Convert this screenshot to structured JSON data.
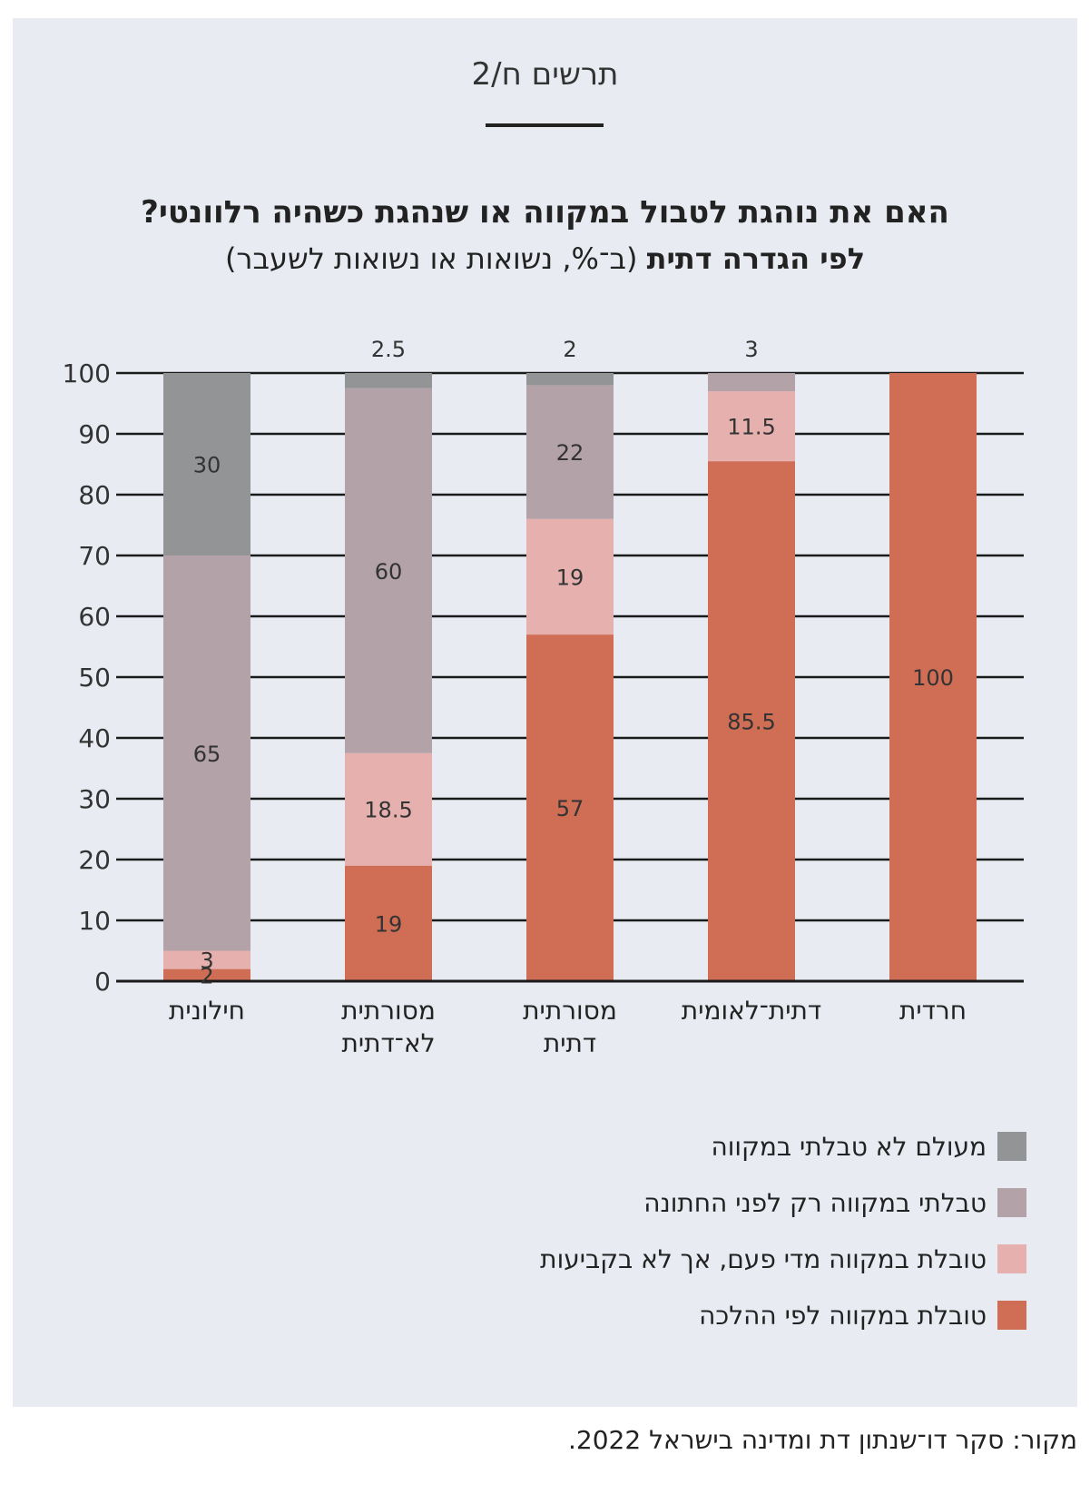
{
  "header": {
    "figure_label": "תרשים ח/2",
    "title_line1": "האם את נוהגת לטבול במקווה או שנהגת כשהיה רלוונטי?",
    "title_line2_bold": "לפי הגדרה דתית",
    "title_line2_rest": " (ב־%, נשואות או נשואות לשעבר)"
  },
  "chart_data": {
    "type": "bar",
    "stacked": true,
    "categories": [
      "חרדית",
      "דתית־לאומית",
      "מסורתית דתית",
      "מסורתית לא־דתית",
      "חילונית"
    ],
    "category_lines": [
      [
        "חרדית"
      ],
      [
        "דתית־לאומית"
      ],
      [
        "מסורתית",
        "דתית"
      ],
      [
        "מסורתית",
        "לא־דתית"
      ],
      [
        "חילונית"
      ]
    ],
    "series": [
      {
        "name": "טובלת במקווה לפי ההלכה",
        "color": "#cf6d55",
        "values": [
          100,
          85.5,
          57,
          19,
          2
        ],
        "labels": [
          "100",
          "85.5",
          "57",
          "19",
          "2"
        ]
      },
      {
        "name": "טובלת במקווה מדי פעם, אך לא בקביעות",
        "color": "#e5b0ae",
        "values": [
          0,
          11.5,
          19,
          18.5,
          3
        ],
        "labels": [
          "",
          "11.5",
          "19",
          "18.5",
          "3"
        ]
      },
      {
        "name": "טבלתי במקווה רק לפני החתונה",
        "color": "#b3a2a7",
        "values": [
          0,
          3,
          22,
          60,
          65
        ],
        "labels": [
          "",
          "3",
          "22",
          "60",
          "65"
        ]
      },
      {
        "name": "מעולם לא טבלתי במקווה",
        "color": "#939496",
        "values": [
          0,
          0,
          2,
          2.5,
          30
        ],
        "labels": [
          "",
          "",
          "2",
          "2.5",
          "30"
        ]
      }
    ],
    "ylim": [
      0,
      100
    ],
    "yticks": [
      0,
      10,
      20,
      30,
      40,
      50,
      60,
      70,
      80,
      90,
      100
    ],
    "grid": true,
    "legend_position": "bottom-right"
  },
  "legend_order": [
    3,
    2,
    1,
    0
  ],
  "source": "מקור: סקר דו־שנתון דת ומדינה בישראל 2022."
}
